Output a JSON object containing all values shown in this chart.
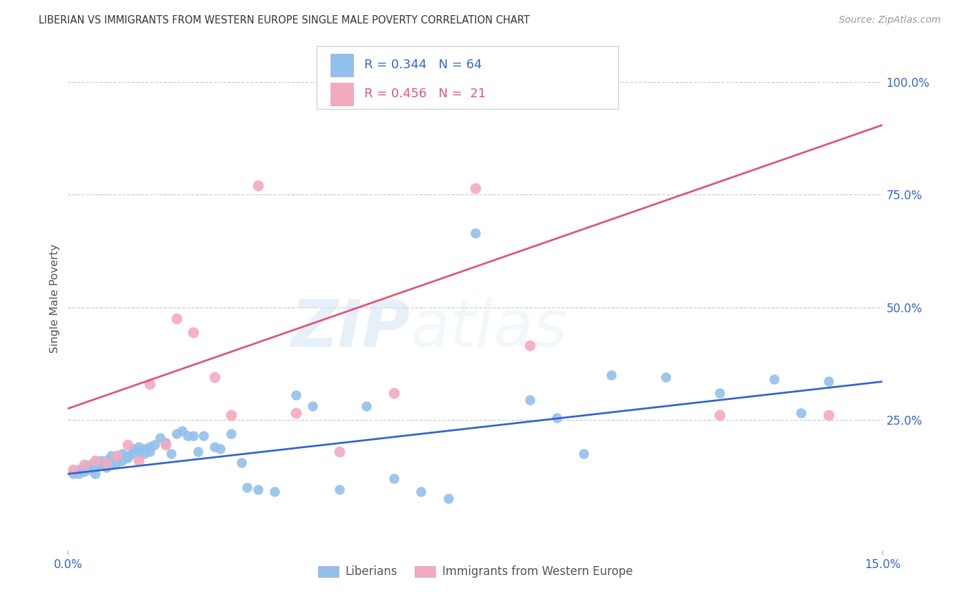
{
  "title": "LIBERIAN VS IMMIGRANTS FROM WESTERN EUROPE SINGLE MALE POVERTY CORRELATION CHART",
  "source": "Source: ZipAtlas.com",
  "ylabel": "Single Male Poverty",
  "right_yticks": [
    "100.0%",
    "75.0%",
    "50.0%",
    "25.0%"
  ],
  "right_ytick_vals": [
    1.0,
    0.75,
    0.5,
    0.25
  ],
  "xlim": [
    0.0,
    0.15
  ],
  "ylim": [
    -0.04,
    1.08
  ],
  "legend_blue_r": "0.344",
  "legend_blue_n": "64",
  "legend_pink_r": "0.456",
  "legend_pink_n": "21",
  "legend_label_blue": "Liberians",
  "legend_label_pink": "Immigrants from Western Europe",
  "blue_color": "#92C0EC",
  "pink_color": "#F4AABE",
  "line_blue_color": "#3366CC",
  "line_pink_color": "#E05575",
  "watermark_zip": "ZIP",
  "watermark_atlas": "atlas",
  "blue_scatter_x": [
    0.001,
    0.002,
    0.002,
    0.003,
    0.003,
    0.004,
    0.004,
    0.005,
    0.005,
    0.005,
    0.006,
    0.006,
    0.007,
    0.007,
    0.008,
    0.008,
    0.009,
    0.009,
    0.01,
    0.01,
    0.011,
    0.011,
    0.012,
    0.012,
    0.013,
    0.013,
    0.014,
    0.014,
    0.015,
    0.015,
    0.016,
    0.017,
    0.018,
    0.019,
    0.02,
    0.021,
    0.022,
    0.023,
    0.024,
    0.025,
    0.027,
    0.028,
    0.03,
    0.032,
    0.033,
    0.035,
    0.038,
    0.042,
    0.045,
    0.05,
    0.055,
    0.06,
    0.065,
    0.07,
    0.075,
    0.085,
    0.09,
    0.095,
    0.1,
    0.11,
    0.12,
    0.13,
    0.135,
    0.14
  ],
  "blue_scatter_y": [
    0.13,
    0.13,
    0.14,
    0.135,
    0.145,
    0.14,
    0.15,
    0.145,
    0.13,
    0.155,
    0.15,
    0.16,
    0.145,
    0.16,
    0.15,
    0.17,
    0.155,
    0.165,
    0.16,
    0.175,
    0.17,
    0.165,
    0.175,
    0.185,
    0.18,
    0.19,
    0.185,
    0.175,
    0.18,
    0.19,
    0.195,
    0.21,
    0.2,
    0.175,
    0.22,
    0.225,
    0.215,
    0.215,
    0.18,
    0.215,
    0.19,
    0.185,
    0.22,
    0.155,
    0.1,
    0.095,
    0.09,
    0.305,
    0.28,
    0.095,
    0.28,
    0.12,
    0.09,
    0.075,
    0.665,
    0.295,
    0.255,
    0.175,
    0.35,
    0.345,
    0.31,
    0.34,
    0.265,
    0.335
  ],
  "pink_scatter_x": [
    0.001,
    0.003,
    0.005,
    0.007,
    0.009,
    0.011,
    0.013,
    0.015,
    0.018,
    0.02,
    0.023,
    0.027,
    0.03,
    0.035,
    0.042,
    0.05,
    0.06,
    0.075,
    0.085,
    0.12,
    0.14
  ],
  "pink_scatter_y": [
    0.14,
    0.15,
    0.16,
    0.155,
    0.17,
    0.195,
    0.16,
    0.33,
    0.195,
    0.475,
    0.445,
    0.345,
    0.26,
    0.77,
    0.265,
    0.18,
    0.31,
    0.765,
    0.415,
    0.26,
    0.26
  ],
  "blue_line_x0": 0.0,
  "blue_line_x1": 0.15,
  "blue_line_y0": 0.13,
  "blue_line_y1": 0.335,
  "pink_line_x0": 0.0,
  "pink_line_x1": 0.15,
  "pink_line_y0": 0.275,
  "pink_line_y1": 0.905,
  "background_color": "#FFFFFF",
  "grid_color": "#CCCCCC",
  "title_color": "#333333",
  "axis_tick_color": "#3366CC",
  "right_axis_color": "#3366CC"
}
